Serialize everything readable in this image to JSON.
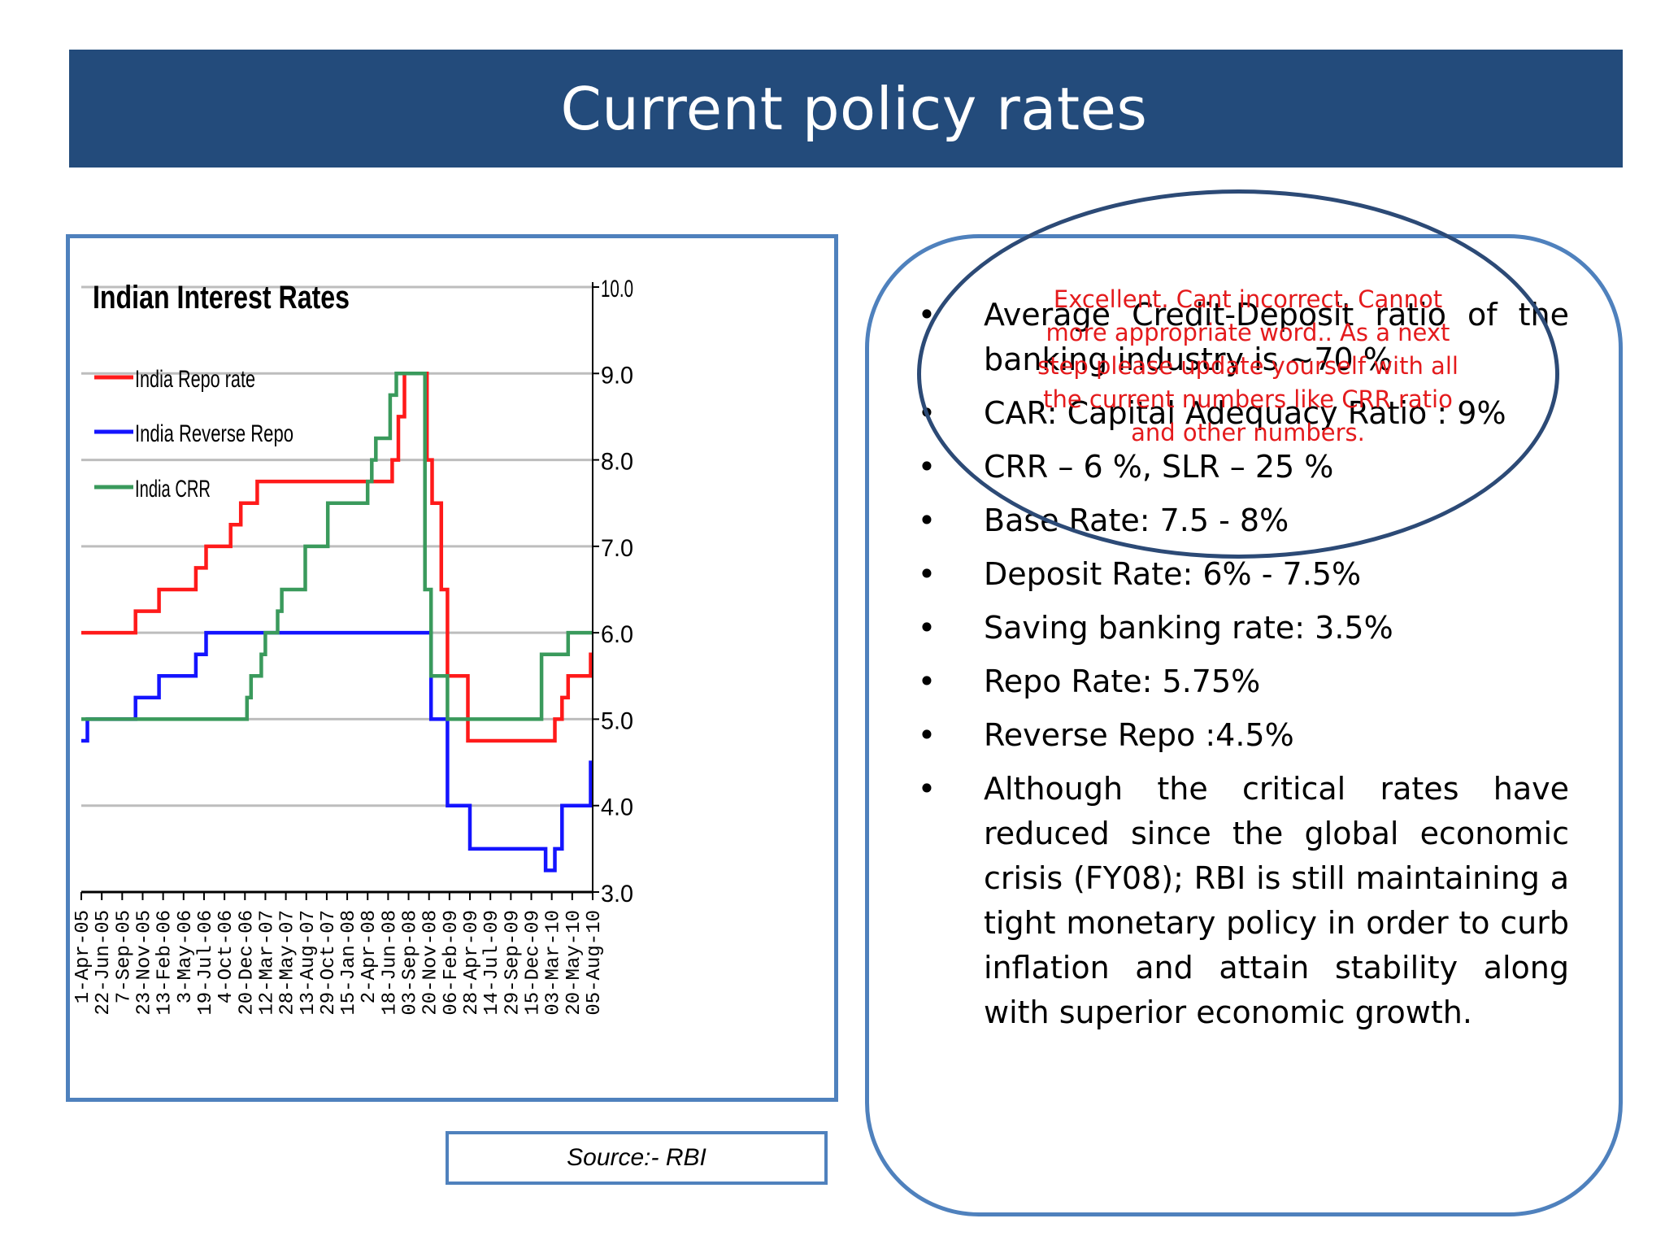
{
  "slide": {
    "title": "Current policy rates",
    "source": "Source:- RBI"
  },
  "bullets": [
    "Average Credit-Deposit ratio of the banking industry is ~70 %",
    "CAR: Capital Adequacy Ratio : 9%",
    "CRR – 6 %, SLR – 25 %",
    "Base Rate: 7.5 - 8%",
    "Deposit Rate: 6% - 7.5%",
    "Saving banking rate: 3.5%",
    "Repo Rate: 5.75%",
    "Reverse Repo :4.5%",
    "Although the critical rates have reduced since the global economic crisis (FY08); RBI is still maintaining a tight monetary policy in order to curb inflation and attain stability along with superior economic growth."
  ],
  "review_comment": "Excellent. Cant incorrect. Cannot more appropriate word.. As a next step please update yourself with all the current numbers like CRR ratio and other numbers.",
  "colors": {
    "repo": "#ff1a1a",
    "reverse_repo": "#1414ff",
    "crr": "#3a9a5c",
    "accent": "#4f81bd",
    "title_bg": "#234b7b"
  },
  "chart_data": {
    "type": "line",
    "title": "Indian Interest Rates",
    "y_axis_side": "right",
    "ylim": [
      3.0,
      10.0
    ],
    "y_ticks": [
      "10.0",
      "9.0",
      "8.0",
      "7.0",
      "6.0",
      "5.0",
      "4.0",
      "3.0"
    ],
    "grid": true,
    "legend_position": "top-left",
    "x_range": [
      0,
      25
    ],
    "x_tick_labels": [
      "1-Apr-05",
      "22-Jun-05",
      "7-Sep-05",
      "23-Nov-05",
      "13-Feb-06",
      "3-May-06",
      "19-Jul-06",
      "4-Oct-06",
      "20-Dec-06",
      "12-Mar-07",
      "28-May-07",
      "13-Aug-07",
      "29-Oct-07",
      "15-Jan-08",
      "2-Apr-08",
      "18-Jun-08",
      "03-Sep-08",
      "20-Nov-08",
      "06-Feb-09",
      "28-Apr-09",
      "14-Jul-09",
      "29-Sep-09",
      "15-Dec-09",
      "03-Mar-10",
      "20-May-10",
      "05-Aug-10"
    ],
    "series": [
      {
        "name": "India Repo rate",
        "color": "#ff1a1a",
        "points": [
          [
            0,
            6.0
          ],
          [
            2.65,
            6.0
          ],
          [
            2.65,
            6.25
          ],
          [
            3.8,
            6.25
          ],
          [
            3.8,
            6.5
          ],
          [
            5.6,
            6.5
          ],
          [
            5.6,
            6.75
          ],
          [
            6.1,
            6.75
          ],
          [
            6.1,
            7.0
          ],
          [
            7.3,
            7.0
          ],
          [
            7.3,
            7.25
          ],
          [
            7.8,
            7.25
          ],
          [
            7.8,
            7.5
          ],
          [
            8.6,
            7.5
          ],
          [
            8.6,
            7.75
          ],
          [
            15.2,
            7.75
          ],
          [
            15.2,
            8.0
          ],
          [
            15.5,
            8.0
          ],
          [
            15.5,
            8.5
          ],
          [
            15.8,
            8.5
          ],
          [
            15.8,
            9.0
          ],
          [
            16.9,
            9.0
          ],
          [
            16.9,
            8.0
          ],
          [
            17.15,
            8.0
          ],
          [
            17.15,
            7.5
          ],
          [
            17.6,
            7.5
          ],
          [
            17.6,
            6.5
          ],
          [
            17.9,
            6.5
          ],
          [
            17.9,
            5.5
          ],
          [
            18.9,
            5.5
          ],
          [
            18.9,
            4.75
          ],
          [
            23.15,
            4.75
          ],
          [
            23.15,
            5.0
          ],
          [
            23.5,
            5.0
          ],
          [
            23.5,
            5.25
          ],
          [
            23.8,
            5.25
          ],
          [
            23.8,
            5.5
          ],
          [
            24.9,
            5.5
          ],
          [
            24.9,
            5.75
          ],
          [
            25.0,
            5.75
          ]
        ]
      },
      {
        "name": "India Reverse Repo",
        "color": "#1414ff",
        "points": [
          [
            0,
            4.75
          ],
          [
            0.3,
            4.75
          ],
          [
            0.3,
            5.0
          ],
          [
            2.65,
            5.0
          ],
          [
            2.65,
            5.25
          ],
          [
            3.8,
            5.25
          ],
          [
            3.8,
            5.5
          ],
          [
            5.6,
            5.5
          ],
          [
            5.6,
            5.75
          ],
          [
            6.1,
            5.75
          ],
          [
            6.1,
            6.0
          ],
          [
            17.1,
            6.0
          ],
          [
            17.1,
            5.0
          ],
          [
            17.9,
            5.0
          ],
          [
            17.9,
            4.0
          ],
          [
            19.0,
            4.0
          ],
          [
            19.0,
            3.5
          ],
          [
            22.7,
            3.5
          ],
          [
            22.7,
            3.25
          ],
          [
            23.15,
            3.25
          ],
          [
            23.15,
            3.5
          ],
          [
            23.5,
            3.5
          ],
          [
            23.5,
            4.0
          ],
          [
            24.9,
            4.0
          ],
          [
            24.9,
            4.5
          ],
          [
            25.0,
            4.5
          ]
        ]
      },
      {
        "name": "India CRR",
        "color": "#3a9a5c",
        "points": [
          [
            0,
            5.0
          ],
          [
            8.1,
            5.0
          ],
          [
            8.1,
            5.25
          ],
          [
            8.3,
            5.25
          ],
          [
            8.3,
            5.5
          ],
          [
            8.8,
            5.5
          ],
          [
            8.8,
            5.75
          ],
          [
            9.0,
            5.75
          ],
          [
            9.0,
            6.0
          ],
          [
            9.6,
            6.0
          ],
          [
            9.6,
            6.25
          ],
          [
            9.8,
            6.25
          ],
          [
            9.8,
            6.5
          ],
          [
            10.95,
            6.5
          ],
          [
            10.95,
            7.0
          ],
          [
            12.05,
            7.0
          ],
          [
            12.05,
            7.5
          ],
          [
            14.0,
            7.5
          ],
          [
            14.0,
            7.75
          ],
          [
            14.2,
            7.75
          ],
          [
            14.2,
            8.0
          ],
          [
            14.4,
            8.0
          ],
          [
            14.4,
            8.25
          ],
          [
            15.1,
            8.25
          ],
          [
            15.1,
            8.75
          ],
          [
            15.4,
            8.75
          ],
          [
            15.4,
            9.0
          ],
          [
            16.5,
            9.0
          ],
          [
            16.5,
            9.0
          ],
          [
            16.8,
            9.0
          ],
          [
            16.8,
            6.5
          ],
          [
            17.1,
            6.5
          ],
          [
            17.1,
            5.5
          ],
          [
            17.9,
            5.5
          ],
          [
            17.9,
            5.0
          ],
          [
            22.5,
            5.0
          ],
          [
            22.5,
            5.75
          ],
          [
            23.8,
            5.75
          ],
          [
            23.8,
            6.0
          ],
          [
            25.0,
            6.0
          ]
        ]
      }
    ]
  }
}
